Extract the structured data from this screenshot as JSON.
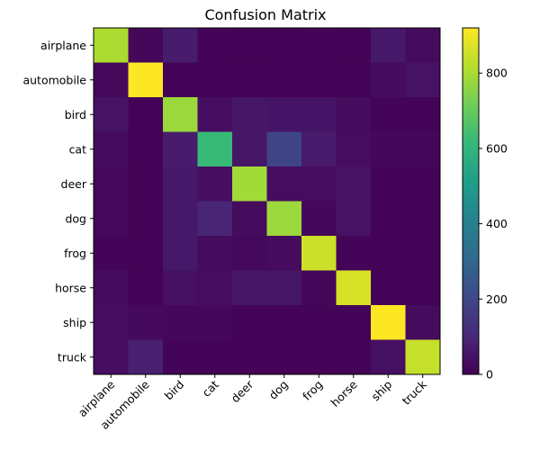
{
  "chart_data": {
    "type": "heatmap",
    "title": "Confusion Matrix",
    "xlabel": "",
    "ylabel": "",
    "row_labels": [
      "airplane",
      "automobile",
      "bird",
      "cat",
      "deer",
      "dog",
      "frog",
      "horse",
      "ship",
      "truck"
    ],
    "col_labels": [
      "airplane",
      "automobile",
      "bird",
      "cat",
      "deer",
      "dog",
      "frog",
      "horse",
      "ship",
      "truck"
    ],
    "values": [
      [
        805,
        15,
        70,
        10,
        8,
        5,
        10,
        8,
        60,
        25
      ],
      [
        20,
        920,
        5,
        5,
        5,
        5,
        5,
        5,
        25,
        45
      ],
      [
        45,
        5,
        780,
        35,
        55,
        50,
        50,
        25,
        10,
        5
      ],
      [
        25,
        5,
        70,
        620,
        55,
        190,
        65,
        30,
        15,
        15
      ],
      [
        20,
        5,
        60,
        35,
        790,
        30,
        30,
        45,
        5,
        5
      ],
      [
        20,
        5,
        60,
        95,
        25,
        780,
        15,
        45,
        5,
        5
      ],
      [
        10,
        5,
        60,
        25,
        20,
        25,
        850,
        10,
        5,
        5
      ],
      [
        25,
        5,
        40,
        30,
        55,
        55,
        15,
        865,
        5,
        5
      ],
      [
        35,
        20,
        15,
        15,
        10,
        10,
        10,
        10,
        920,
        25
      ],
      [
        35,
        80,
        10,
        10,
        5,
        5,
        5,
        10,
        40,
        840
      ]
    ],
    "colormap": "viridis",
    "color_range": [
      0,
      920
    ],
    "colorbar_ticks": [
      0,
      200,
      400,
      600,
      800
    ],
    "grid": false,
    "x_tick_rotation": 45
  }
}
